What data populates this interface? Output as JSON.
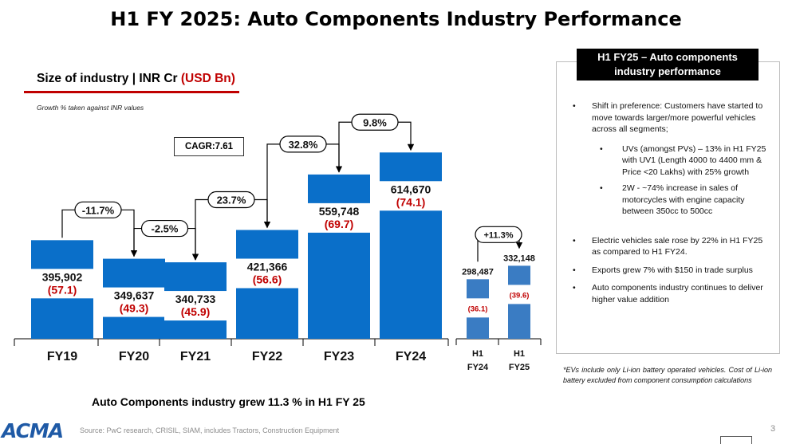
{
  "page": {
    "title": "H1 FY 2025: Auto Components Industry Performance",
    "conclusion": "Auto Components industry grew 11.3 % in H1 FY 25",
    "source": "Source: PwC research, CRISIL, SIAM, includes Tractors, Construction Equipment",
    "page_number": "3",
    "logo_text": "ACMA"
  },
  "chart_header": {
    "subtitle_main": "Size of industry | INR Cr ",
    "subtitle_usd": "(USD Bn)",
    "growth_note": "Growth % taken against INR values",
    "cagr": "CAGR:7.61"
  },
  "chart_data": [
    {
      "type": "bar",
      "categories": [
        "FY19",
        "FY20",
        "FY21",
        "FY22",
        "FY23",
        "FY24"
      ],
      "values": [
        395902,
        349637,
        340733,
        421366,
        559748,
        614670
      ],
      "value_labels": [
        "395,902",
        "349,637",
        "340,733",
        "421,366",
        "559,748",
        "614,670"
      ],
      "usd_labels": [
        "(57.1)",
        "(49.3)",
        "(45.9)",
        "(56.6)",
        "(69.7)",
        "(74.1)"
      ],
      "growth_labels": [
        "-11.7%",
        "-2.5%",
        "23.7%",
        "32.8%",
        "9.8%"
      ],
      "cagr": "CAGR:7.61",
      "bar_color": "#0a6fc9",
      "usd_color": "#c00000"
    },
    {
      "type": "bar",
      "categories": [
        "H1\nFY24",
        "H1\nFY25"
      ],
      "category_lines": [
        [
          "H1",
          "FY24"
        ],
        [
          "H1",
          "FY25"
        ]
      ],
      "values": [
        298487,
        332148
      ],
      "value_labels": [
        "298,487",
        "332,148"
      ],
      "usd_labels": [
        "(36.1)",
        "(39.6)"
      ],
      "growth_labels": [
        "+11.3%"
      ],
      "bar_color": "#3a7cc3",
      "usd_color": "#c00000"
    }
  ],
  "panel": {
    "heading_line1": "H1 FY25 – Auto components",
    "heading_line2": "industry performance",
    "bullets": [
      "Shift in preference: Customers have started to move towards larger/more powerful vehicles across all segments;",
      "UVs (amongst PVs) – 13% in H1 FY25 with UV1 (Length 4000  to 4400 mm & Price <20 Lakhs) with 25% growth",
      "2W - ~74% increase in sales of motorcycles with engine capacity between 350cc to 500cc",
      "Electric vehicles sale rose by 22% in H1 FY25 as compared to H1 FY24.",
      "Exports grew 7% with $150 in trade surplus",
      "Auto components industry continues to deliver higher value addition"
    ],
    "footnote": "*EVs include only Li-ion battery operated vehicles. Cost of Li-ion battery excluded from component consumption calculations"
  }
}
